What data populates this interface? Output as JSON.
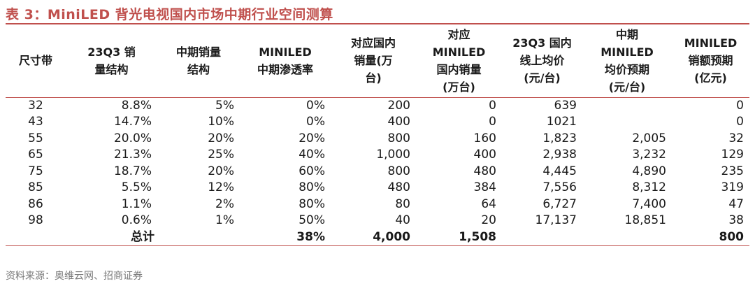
{
  "title": "表 3：MiniLED 背光电视国内市场中期行业空间测算",
  "headers": [
    [
      "尺寸带"
    ],
    [
      "23Q3 销",
      "量结构"
    ],
    [
      "中期销量",
      "结构"
    ],
    [
      "MINILED",
      "中期渗透率"
    ],
    [
      "对应国内",
      "销量(万",
      "台)"
    ],
    [
      "对应",
      "MINILED",
      "国内销量",
      "(万台)"
    ],
    [
      "23Q3 国内",
      "线上均价",
      "(元/台)"
    ],
    [
      "中期",
      "MINILED",
      "均价预期",
      "(元/台)"
    ],
    [
      "MINILED",
      "销额预期",
      "(亿元)"
    ]
  ],
  "rows": [
    [
      "32",
      "8.8%",
      "5%",
      "0%",
      "200",
      "0",
      "639",
      "",
      "0"
    ],
    [
      "43",
      "14.7%",
      "10%",
      "0%",
      "400",
      "0",
      "1021",
      "",
      "0"
    ],
    [
      "55",
      "20.0%",
      "20%",
      "20%",
      "800",
      "160",
      "1,823",
      "2,005",
      "32"
    ],
    [
      "65",
      "21.3%",
      "25%",
      "40%",
      "1,000",
      "400",
      "2,938",
      "3,232",
      "129"
    ],
    [
      "75",
      "18.7%",
      "20%",
      "60%",
      "800",
      "480",
      "4,445",
      "4,890",
      "235"
    ],
    [
      "85",
      "5.5%",
      "12%",
      "80%",
      "480",
      "384",
      "7,556",
      "8,312",
      "319"
    ],
    [
      "86",
      "1.1%",
      "2%",
      "80%",
      "80",
      "64",
      "6,727",
      "7,400",
      "47"
    ],
    [
      "98",
      "0.6%",
      "1%",
      "50%",
      "40",
      "20",
      "17,137",
      "18,851",
      "38"
    ]
  ],
  "total": {
    "label": "总计",
    "penetration": "38%",
    "sales_volume": "4,000",
    "miniled_volume": "1,508",
    "revenue": "800"
  },
  "source": "资料来源：奥维云网、招商证券"
}
